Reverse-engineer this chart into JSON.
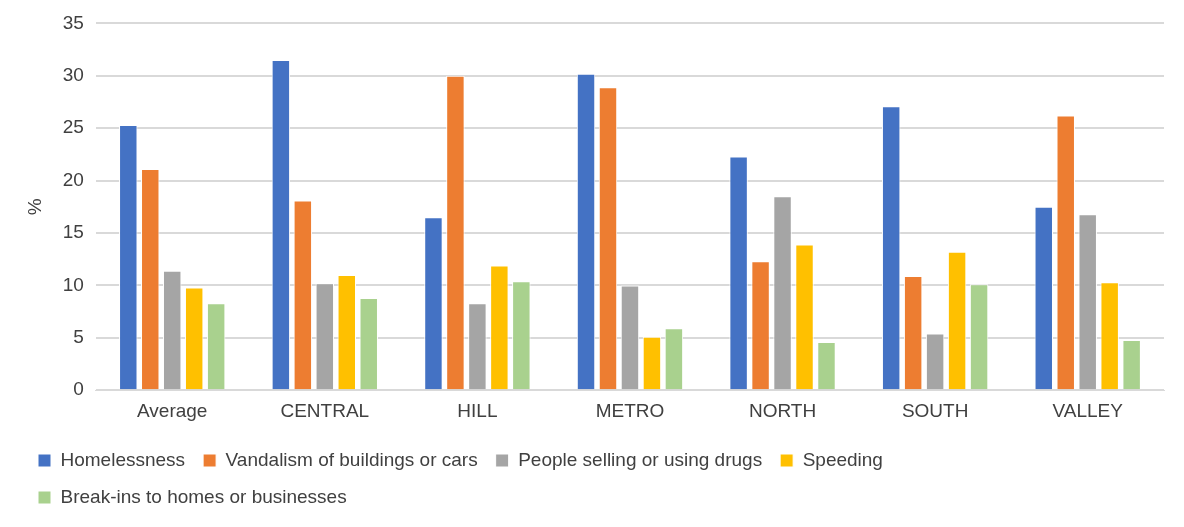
{
  "chart_data": {
    "type": "bar",
    "ylabel": "%",
    "categories": [
      "Average",
      "CENTRAL",
      "HILL",
      "METRO",
      "NORTH",
      "SOUTH",
      "VALLEY"
    ],
    "series": [
      {
        "name": "Homelessness",
        "color": "#4472c4",
        "values": [
          25.3,
          31.5,
          16.5,
          30.2,
          22.3,
          27.1,
          17.5
        ]
      },
      {
        "name": "Vandalism of buildings or cars",
        "color": "#ed7d31",
        "values": [
          21.1,
          18.1,
          30.0,
          28.9,
          12.3,
          10.9,
          26.2
        ]
      },
      {
        "name": "People selling or using drugs",
        "color": "#a5a5a5",
        "values": [
          11.4,
          10.2,
          8.3,
          10.0,
          18.5,
          5.4,
          16.8
        ]
      },
      {
        "name": "Speeding",
        "color": "#ffc000",
        "values": [
          9.8,
          11.0,
          11.9,
          5.1,
          13.9,
          13.2,
          10.3
        ]
      },
      {
        "name": "Break-ins to homes or businesses",
        "color": "#a9d18e",
        "values": [
          8.3,
          8.8,
          10.4,
          5.9,
          4.6,
          10.1,
          4.8
        ]
      }
    ],
    "ylim": [
      0,
      35
    ],
    "yticks": [
      0,
      5,
      10,
      15,
      20,
      25,
      30,
      35
    ],
    "grid": "y",
    "legend": "bottom"
  }
}
